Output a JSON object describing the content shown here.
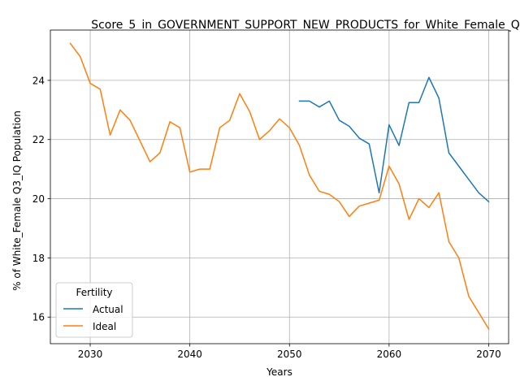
{
  "chart_data": {
    "type": "line",
    "title": "Score_5_in_GOVERNMENT_SUPPORT_NEW_PRODUCTS_for_White_Female_Q",
    "xlabel": "Years",
    "ylabel": "% of White_Female Q3_IQ Population",
    "xlim": [
      2026,
      2072
    ],
    "ylim": [
      15.1,
      25.7
    ],
    "xticks": [
      2030,
      2040,
      2050,
      2060,
      2070
    ],
    "yticks": [
      16,
      18,
      20,
      22,
      24
    ],
    "grid": true,
    "legend": {
      "title": "Fertility",
      "placement": "lower-left"
    },
    "series": [
      {
        "name": "Actual",
        "color": "#1f77b4",
        "x": [
          2051,
          2052,
          2053,
          2054,
          2055,
          2056,
          2057,
          2058,
          2059,
          2060,
          2061,
          2062,
          2063,
          2064,
          2065,
          2066,
          2067,
          2068,
          2069,
          2070
        ],
        "y": [
          23.3,
          23.3,
          23.1,
          23.3,
          22.65,
          22.45,
          22.05,
          21.85,
          20.2,
          22.5,
          21.8,
          23.25,
          23.25,
          24.1,
          23.4,
          21.55,
          21.1,
          20.65,
          20.2,
          19.9
        ]
      },
      {
        "name": "Ideal",
        "color": "#ff7f0e",
        "x": [
          2028,
          2029,
          2030,
          2031,
          2032,
          2033,
          2034,
          2035,
          2036,
          2037,
          2038,
          2039,
          2040,
          2041,
          2042,
          2043,
          2044,
          2045,
          2046,
          2047,
          2048,
          2049,
          2050,
          2051,
          2052,
          2053,
          2054,
          2055,
          2056,
          2057,
          2058,
          2059,
          2060,
          2061,
          2062,
          2063,
          2064,
          2065,
          2066,
          2067,
          2068,
          2069,
          2070
        ],
        "y": [
          25.25,
          24.8,
          23.9,
          23.7,
          22.15,
          23.0,
          22.65,
          21.95,
          21.25,
          21.55,
          22.6,
          22.4,
          20.9,
          21.0,
          21.0,
          22.4,
          22.65,
          23.55,
          22.95,
          22.0,
          22.3,
          22.7,
          22.4,
          21.8,
          20.8,
          20.25,
          20.15,
          19.9,
          19.4,
          19.75,
          19.85,
          19.95,
          21.1,
          20.5,
          19.3,
          20.0,
          19.7,
          20.2,
          18.55,
          18.0,
          16.7,
          16.15,
          15.6
        ]
      }
    ]
  }
}
